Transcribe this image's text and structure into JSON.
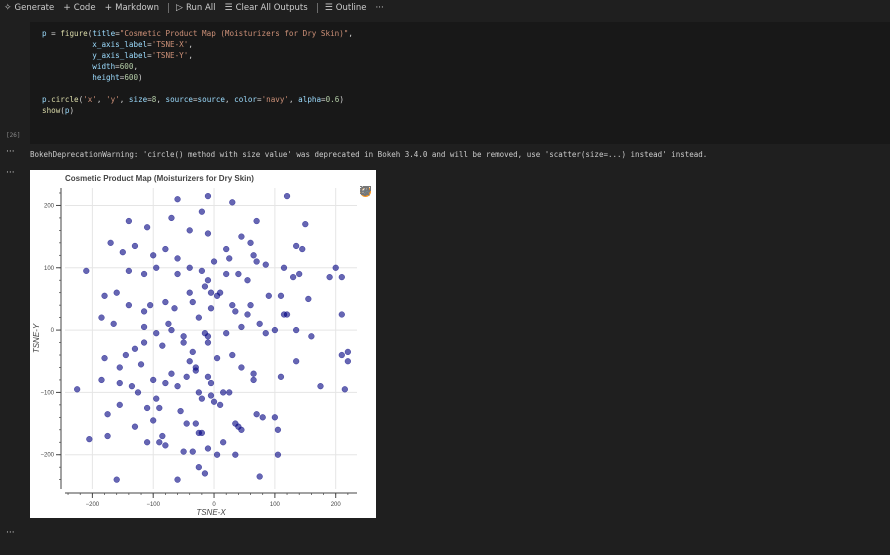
{
  "toolbar": {
    "generate": "Generate",
    "code": "Code",
    "markdown": "Markdown",
    "run_all": "Run All",
    "clear_all_outputs": "Clear All Outputs",
    "outline": "Outline",
    "more": "···"
  },
  "cell": {
    "execution_count": "[26]",
    "lines": [
      "p = figure(title=\"Cosmetic Product Map (Moisturizers for Dry Skin)\",",
      "           x_axis_label='TSNE-X',",
      "           y_axis_label='TSNE-Y',",
      "           width=600,",
      "           height=600)",
      "",
      "p.circle('x', 'y', size=8, source=source, color='navy', alpha=0.6)",
      "show(p)"
    ]
  },
  "output": {
    "warning_dots": "···",
    "plot_dots": "···",
    "bottom_dots": "···",
    "warning": "BokehDeprecationWarning: 'circle() method with size value' was deprecated in Bokeh 3.4.0 and will be removed, use 'scatter(size=...) instead' instead."
  },
  "plot_tools": [
    "bokeh-logo-icon",
    "pan-icon",
    "box-zoom-icon",
    "wheel-zoom-icon",
    "save-icon",
    "reset-icon",
    "help-icon"
  ],
  "chart_data": {
    "type": "scatter",
    "title": "Cosmetic Product Map (Moisturizers for Dry Skin)",
    "xlabel": "TSNE-X",
    "ylabel": "TSNE-Y",
    "xlim": [
      -245,
      235
    ],
    "ylim": [
      -255,
      228
    ],
    "xticks": [
      -200,
      -100,
      0,
      100,
      200
    ],
    "yticks": [
      -200,
      -100,
      0,
      100,
      200
    ],
    "xtick_labels": [
      "−200",
      "−100",
      "0",
      "100",
      "200"
    ],
    "ytick_labels": [
      "−200",
      "−100",
      "0",
      "100",
      "200"
    ],
    "grid": true,
    "color": "#000080",
    "alpha": 0.6,
    "x": [
      -60,
      -10,
      30,
      120,
      -70,
      70,
      150,
      -140,
      -20,
      -110,
      -40,
      -10,
      45,
      60,
      135,
      145,
      -170,
      -130,
      -80,
      20,
      -150,
      -100,
      0,
      25,
      65,
      -60,
      70,
      85,
      115,
      -210,
      -95,
      -40,
      -140,
      -20,
      20,
      140,
      200,
      -115,
      -60,
      -10,
      -15,
      55,
      40,
      130,
      -5,
      190,
      210,
      -180,
      -160,
      -40,
      5,
      90,
      10,
      30,
      110,
      -105,
      155,
      -35,
      -80,
      -140,
      -115,
      -65,
      -5,
      55,
      60,
      35,
      115,
      -25,
      -185,
      -165,
      -75,
      75,
      -115,
      45,
      100,
      135,
      -95,
      -70,
      -15,
      -10,
      20,
      -50,
      -50,
      85,
      160,
      -10,
      210,
      220,
      -180,
      -130,
      -85,
      -115,
      -35,
      5,
      -30,
      -145,
      -40,
      30,
      110,
      135,
      -120,
      -185,
      -155,
      45,
      -30,
      -70,
      -45,
      65,
      65,
      -155,
      -100,
      -10,
      175,
      -80,
      -60,
      -5,
      -25,
      25,
      215,
      -125,
      -5,
      -135,
      -20,
      15,
      -225,
      -95,
      0,
      -90,
      10,
      -55,
      -110,
      -155,
      -175,
      -100,
      35,
      70,
      45,
      100,
      -130,
      -20,
      -45,
      105,
      -175,
      -110,
      -205,
      -80,
      -35,
      -50,
      105,
      35,
      -25,
      -15,
      -10,
      75,
      15,
      -25,
      40,
      80,
      -85,
      -90,
      -60,
      5,
      -160,
      -30,
      120,
      210,
      220
    ],
    "y": [
      210,
      215,
      205,
      215,
      180,
      175,
      170,
      175,
      190,
      165,
      160,
      155,
      150,
      140,
      135,
      130,
      140,
      135,
      130,
      130,
      125,
      120,
      110,
      115,
      120,
      115,
      110,
      105,
      100,
      95,
      100,
      100,
      95,
      95,
      90,
      90,
      100,
      90,
      90,
      80,
      70,
      80,
      90,
      85,
      60,
      85,
      85,
      55,
      60,
      60,
      55,
      55,
      60,
      40,
      55,
      40,
      50,
      45,
      45,
      40,
      30,
      35,
      35,
      25,
      40,
      30,
      25,
      20,
      20,
      10,
      10,
      10,
      5,
      5,
      0,
      0,
      -5,
      0,
      -5,
      -10,
      -5,
      -10,
      -20,
      -5,
      -10,
      -20,
      -40,
      -50,
      -45,
      -30,
      -25,
      -20,
      -35,
      -45,
      -60,
      -40,
      -50,
      -40,
      -75,
      -50,
      -55,
      -80,
      -60,
      -60,
      -65,
      -70,
      -75,
      -70,
      -80,
      -85,
      -80,
      -75,
      -90,
      -85,
      -90,
      -85,
      -100,
      -100,
      -95,
      -100,
      -105,
      -90,
      -110,
      -100,
      -95,
      -110,
      -115,
      -125,
      -120,
      -130,
      -125,
      -120,
      -135,
      -145,
      -150,
      -135,
      -160,
      -140,
      -155,
      -165,
      -150,
      -160,
      -170,
      -180,
      -175,
      -185,
      -195,
      -195,
      -200,
      -200,
      -220,
      -230,
      -190,
      -235,
      -180,
      -165,
      -155,
      -140,
      -170,
      -180,
      -240,
      -200,
      -240,
      -150,
      25,
      25,
      -35
    ]
  }
}
